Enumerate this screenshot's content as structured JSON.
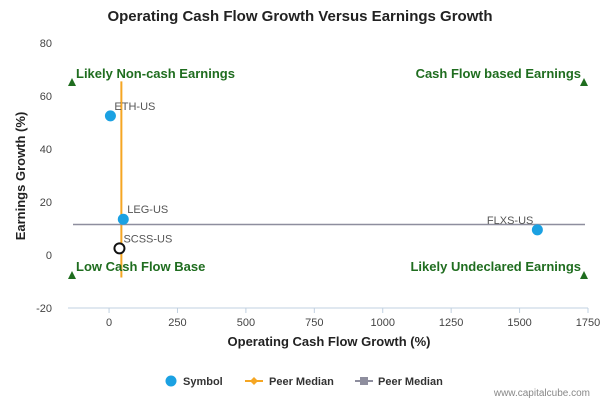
{
  "chart_data": {
    "type": "scatter",
    "title": "Operating Cash Flow Growth Versus Earnings Growth",
    "xlabel": "Operating Cash Flow Growth (%)",
    "ylabel": "Earnings Growth (%)",
    "xlim": [
      -150,
      1750
    ],
    "ylim": [
      -20,
      80
    ],
    "xticks": [
      0,
      250,
      500,
      750,
      1000,
      1250,
      1500,
      1750
    ],
    "xtick_labels": [
      "0",
      "250",
      "500",
      "750",
      "1000",
      "1250",
      "1500",
      "1750"
    ],
    "yticks": [
      -20,
      0,
      20,
      40,
      60,
      80
    ],
    "ytick_labels": [
      "-20",
      "0",
      "20",
      "40",
      "60",
      "80"
    ],
    "points": [
      {
        "label": "ETH-US",
        "x": 5,
        "y": 52.5,
        "style": "filled"
      },
      {
        "label": "LEG-US",
        "x": 52,
        "y": 13.5,
        "style": "filled"
      },
      {
        "label": "SCSS-US",
        "x": 38,
        "y": 2.5,
        "style": "hollow"
      },
      {
        "label": "FLXS-US",
        "x": 1565,
        "y": 9.5,
        "style": "filled"
      }
    ],
    "peer_median_x": 45,
    "peer_median_y": 11.5,
    "quadrant_labels": {
      "top_left": "Likely Non-cash Earnings",
      "top_right": "Cash Flow based Earnings",
      "bottom_left": "Low Cash Flow Base",
      "bottom_right": "Likely Undeclared Earnings"
    },
    "legend": [
      {
        "label": "Symbol",
        "kind": "circle"
      },
      {
        "label": "Peer Median",
        "kind": "diamond-line"
      },
      {
        "label": "Peer Median",
        "kind": "square-line"
      }
    ],
    "legend_position": "bottom-center",
    "grid": false,
    "colors": {
      "point": "#1ba1e2",
      "vertical_median": "#f5a623",
      "horizontal_median": "#8e8e9e",
      "quadrant_text": "#1f6d1f",
      "axis": "#c0d0e0"
    }
  },
  "watermark": "www.capitalcube.com"
}
